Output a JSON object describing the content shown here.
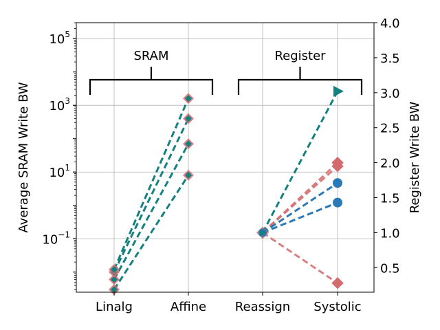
{
  "chart_data": {
    "type": "line",
    "categories": [
      "Linalg",
      "Affine",
      "Reassign",
      "Systolic"
    ],
    "left_axis": {
      "label": "Average SRAM Write BW",
      "scale": "log",
      "range": [
        0.0025,
        300000
      ],
      "ticks": [
        {
          "value": 0.1,
          "base": "10",
          "exp": "−1"
        },
        {
          "value": 10,
          "base": "10",
          "exp": "1"
        },
        {
          "value": 1000,
          "base": "10",
          "exp": "3"
        },
        {
          "value": 100000,
          "base": "10",
          "exp": "5"
        }
      ]
    },
    "right_axis": {
      "label": "Register Write BW",
      "scale": "linear",
      "range": [
        0.15,
        4.0
      ],
      "ticks": [
        0.5,
        1.0,
        1.5,
        2.0,
        2.5,
        3.0,
        3.5,
        4.0
      ]
    },
    "grid": true,
    "groups": [
      {
        "label": "SRAM",
        "from": "Linalg",
        "to": "Affine"
      },
      {
        "label": "Register",
        "from": "Reassign",
        "to": "Systolic"
      }
    ],
    "sram_series": [
      {
        "marker": "diamond",
        "values": [
          0.003,
          8
        ]
      },
      {
        "marker": "diamond",
        "values": [
          0.006,
          70
        ]
      },
      {
        "marker": "diamond",
        "values": [
          0.01,
          400
        ]
      },
      {
        "marker": "diamond",
        "values": [
          0.012,
          1600
        ]
      }
    ],
    "register_series": [
      {
        "color": "#d36b6e",
        "marker": "diamond",
        "values": [
          1.0,
          2.0
        ]
      },
      {
        "color": "#d36b6e",
        "marker": "diamond",
        "values": [
          1.0,
          1.95
        ]
      },
      {
        "color": "#d36b6e",
        "marker": "diamond",
        "values": [
          1.0,
          0.28
        ]
      },
      {
        "color": "#2a7ab8",
        "marker": "circle",
        "values": [
          1.0,
          1.71
        ]
      },
      {
        "color": "#2a7ab8",
        "marker": "circle",
        "values": [
          1.0,
          1.43
        ]
      },
      {
        "color": "#13817f",
        "marker": "triangle-right",
        "values": [
          1.0,
          3.02
        ]
      }
    ],
    "colors": {
      "red": "#d36b6e",
      "blue": "#2a7ab8",
      "teal": "#13817f"
    }
  }
}
